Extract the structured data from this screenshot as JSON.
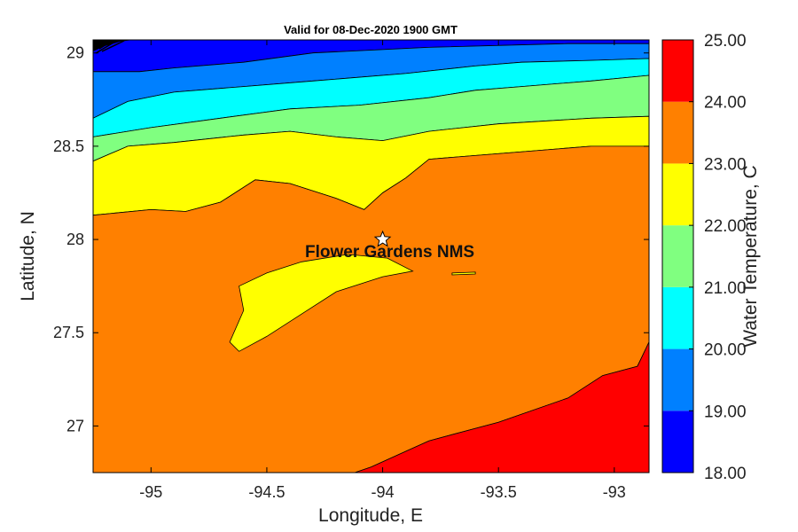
{
  "chart_data": {
    "type": "heatmap",
    "title": "Valid for 08-Dec-2020 1900 GMT",
    "xlabel": "Longitude, E",
    "ylabel": "Latitude, N",
    "xlim": [
      -95.25,
      -92.85
    ],
    "ylim": [
      26.75,
      29.07
    ],
    "xticks": [
      -95,
      -94.5,
      -94,
      -93.5,
      -93
    ],
    "xtick_labels": [
      "-95",
      "-94.5",
      "-94",
      "-93.5",
      "-93"
    ],
    "yticks": [
      27,
      27.5,
      28,
      28.5,
      29
    ],
    "ytick_labels": [
      "27",
      "27.5",
      "28",
      "28.5",
      "29"
    ],
    "colorbar": {
      "label": "Water Temperature, C",
      "range": [
        18,
        25
      ],
      "levels": [
        {
          "from": 18,
          "to": 19,
          "color": "#0000ff"
        },
        {
          "from": 19,
          "to": 20,
          "color": "#0080ff"
        },
        {
          "from": 20,
          "to": 21,
          "color": "#00ffff"
        },
        {
          "from": 21,
          "to": 22,
          "color": "#80ff80"
        },
        {
          "from": 22,
          "to": 23,
          "color": "#ffff00"
        },
        {
          "from": 23,
          "to": 24,
          "color": "#ff8000"
        },
        {
          "from": 24,
          "to": 25,
          "color": "#ff0000"
        }
      ],
      "tick_labels": [
        "18.00",
        "19.00",
        "20.00",
        "21.00",
        "22.00",
        "23.00",
        "24.00",
        "25.00"
      ]
    },
    "station": {
      "name": "Flower Gardens NMS",
      "lon": -94.0,
      "lat": 28.0,
      "marker": "star"
    },
    "land_color": "#ffffff",
    "contours": [
      {
        "level": "18-19",
        "color": "#0000ff",
        "points": [
          [
            -95.25,
            29.07
          ],
          [
            -92.85,
            29.07
          ],
          [
            -92.85,
            29.05
          ],
          [
            -93.2,
            29.05
          ],
          [
            -93.8,
            29.03
          ],
          [
            -94.3,
            29.0
          ],
          [
            -94.6,
            28.95
          ],
          [
            -94.9,
            28.92
          ],
          [
            -95.05,
            28.9
          ],
          [
            -95.25,
            28.9
          ]
        ]
      },
      {
        "level": "19-20",
        "color": "#0080ff",
        "points": [
          [
            -95.25,
            28.9
          ],
          [
            -95.05,
            28.9
          ],
          [
            -94.9,
            28.92
          ],
          [
            -94.6,
            28.95
          ],
          [
            -94.3,
            29.0
          ],
          [
            -93.8,
            29.03
          ],
          [
            -93.2,
            29.05
          ],
          [
            -92.85,
            29.05
          ],
          [
            -92.85,
            28.97
          ],
          [
            -93.1,
            28.96
          ],
          [
            -93.4,
            28.95
          ],
          [
            -93.6,
            28.93
          ],
          [
            -93.9,
            28.89
          ],
          [
            -94.3,
            28.85
          ],
          [
            -94.6,
            28.82
          ],
          [
            -94.9,
            28.79
          ],
          [
            -95.1,
            28.74
          ],
          [
            -95.25,
            28.65
          ]
        ]
      },
      {
        "level": "20-21",
        "color": "#00ffff",
        "points": [
          [
            -95.25,
            28.65
          ],
          [
            -95.1,
            28.74
          ],
          [
            -94.9,
            28.79
          ],
          [
            -94.6,
            28.82
          ],
          [
            -94.3,
            28.85
          ],
          [
            -93.9,
            28.89
          ],
          [
            -93.6,
            28.93
          ],
          [
            -93.4,
            28.95
          ],
          [
            -93.1,
            28.96
          ],
          [
            -92.85,
            28.97
          ],
          [
            -92.85,
            28.88
          ],
          [
            -93.1,
            28.85
          ],
          [
            -93.4,
            28.82
          ],
          [
            -93.6,
            28.8
          ],
          [
            -93.8,
            28.76
          ],
          [
            -94.1,
            28.72
          ],
          [
            -94.4,
            28.7
          ],
          [
            -94.7,
            28.65
          ],
          [
            -95.0,
            28.6
          ],
          [
            -95.25,
            28.55
          ]
        ]
      },
      {
        "level": "21-22",
        "color": "#80ff80",
        "points": [
          [
            -95.25,
            28.55
          ],
          [
            -95.0,
            28.6
          ],
          [
            -94.7,
            28.65
          ],
          [
            -94.4,
            28.7
          ],
          [
            -94.1,
            28.72
          ],
          [
            -93.8,
            28.76
          ],
          [
            -93.6,
            28.8
          ],
          [
            -93.4,
            28.82
          ],
          [
            -93.1,
            28.85
          ],
          [
            -92.85,
            28.88
          ],
          [
            -92.85,
            28.66
          ],
          [
            -93.1,
            28.65
          ],
          [
            -93.5,
            28.62
          ],
          [
            -93.8,
            28.58
          ],
          [
            -94.0,
            28.53
          ],
          [
            -94.2,
            28.55
          ],
          [
            -94.4,
            28.58
          ],
          [
            -94.6,
            28.56
          ],
          [
            -94.9,
            28.52
          ],
          [
            -95.1,
            28.5
          ],
          [
            -95.25,
            28.42
          ]
        ]
      },
      {
        "level": "22-23",
        "color": "#ffff00",
        "points": [
          [
            -95.25,
            28.42
          ],
          [
            -95.1,
            28.5
          ],
          [
            -94.9,
            28.52
          ],
          [
            -94.6,
            28.56
          ],
          [
            -94.4,
            28.58
          ],
          [
            -94.2,
            28.55
          ],
          [
            -94.0,
            28.53
          ],
          [
            -93.8,
            28.58
          ],
          [
            -93.5,
            28.62
          ],
          [
            -93.1,
            28.65
          ],
          [
            -92.85,
            28.66
          ],
          [
            -92.85,
            28.5
          ],
          [
            -93.1,
            28.5
          ],
          [
            -93.3,
            28.48
          ],
          [
            -93.6,
            28.45
          ],
          [
            -93.8,
            28.43
          ],
          [
            -93.9,
            28.33
          ],
          [
            -94.0,
            28.25
          ],
          [
            -94.08,
            28.16
          ],
          [
            -94.2,
            28.22
          ],
          [
            -94.4,
            28.3
          ],
          [
            -94.55,
            28.32
          ],
          [
            -94.7,
            28.2
          ],
          [
            -94.85,
            28.15
          ],
          [
            -95.0,
            28.16
          ],
          [
            -95.25,
            28.13
          ]
        ]
      },
      {
        "level": "23-24",
        "color": "#ff8000",
        "points": [
          [
            -95.25,
            28.13
          ],
          [
            -95.0,
            28.16
          ],
          [
            -94.85,
            28.15
          ],
          [
            -94.7,
            28.2
          ],
          [
            -94.55,
            28.32
          ],
          [
            -94.4,
            28.3
          ],
          [
            -94.2,
            28.22
          ],
          [
            -94.08,
            28.16
          ],
          [
            -94.0,
            28.25
          ],
          [
            -93.9,
            28.33
          ],
          [
            -93.8,
            28.43
          ],
          [
            -93.6,
            28.45
          ],
          [
            -93.3,
            28.48
          ],
          [
            -93.1,
            28.5
          ],
          [
            -92.85,
            28.5
          ],
          [
            -92.85,
            27.45
          ],
          [
            -92.9,
            27.32
          ],
          [
            -93.05,
            27.27
          ],
          [
            -93.2,
            27.15
          ],
          [
            -93.5,
            27.02
          ],
          [
            -93.8,
            26.92
          ],
          [
            -94.05,
            26.78
          ],
          [
            -94.12,
            26.75
          ],
          [
            -95.25,
            26.75
          ]
        ]
      },
      {
        "level": "24-25",
        "color": "#ff0000",
        "points": [
          [
            -94.12,
            26.75
          ],
          [
            -94.05,
            26.78
          ],
          [
            -93.8,
            26.92
          ],
          [
            -93.5,
            27.02
          ],
          [
            -93.2,
            27.15
          ],
          [
            -93.05,
            27.27
          ],
          [
            -92.9,
            27.32
          ],
          [
            -92.85,
            27.45
          ],
          [
            -92.85,
            26.75
          ]
        ]
      },
      {
        "level": "22-23-patch",
        "color": "#ffff00",
        "points": [
          [
            -94.62,
            27.75
          ],
          [
            -94.5,
            27.82
          ],
          [
            -94.35,
            27.88
          ],
          [
            -94.15,
            27.92
          ],
          [
            -93.98,
            27.9
          ],
          [
            -93.87,
            27.83
          ],
          [
            -94.0,
            27.8
          ],
          [
            -94.2,
            27.72
          ],
          [
            -94.35,
            27.6
          ],
          [
            -94.5,
            27.48
          ],
          [
            -94.62,
            27.4
          ],
          [
            -94.66,
            27.45
          ],
          [
            -94.6,
            27.62
          ]
        ]
      },
      {
        "level": "22-23-sliver",
        "color": "#ffff00",
        "points": [
          [
            -93.7,
            27.82
          ],
          [
            -93.6,
            27.825
          ],
          [
            -93.6,
            27.815
          ],
          [
            -93.7,
            27.81
          ]
        ]
      }
    ]
  }
}
